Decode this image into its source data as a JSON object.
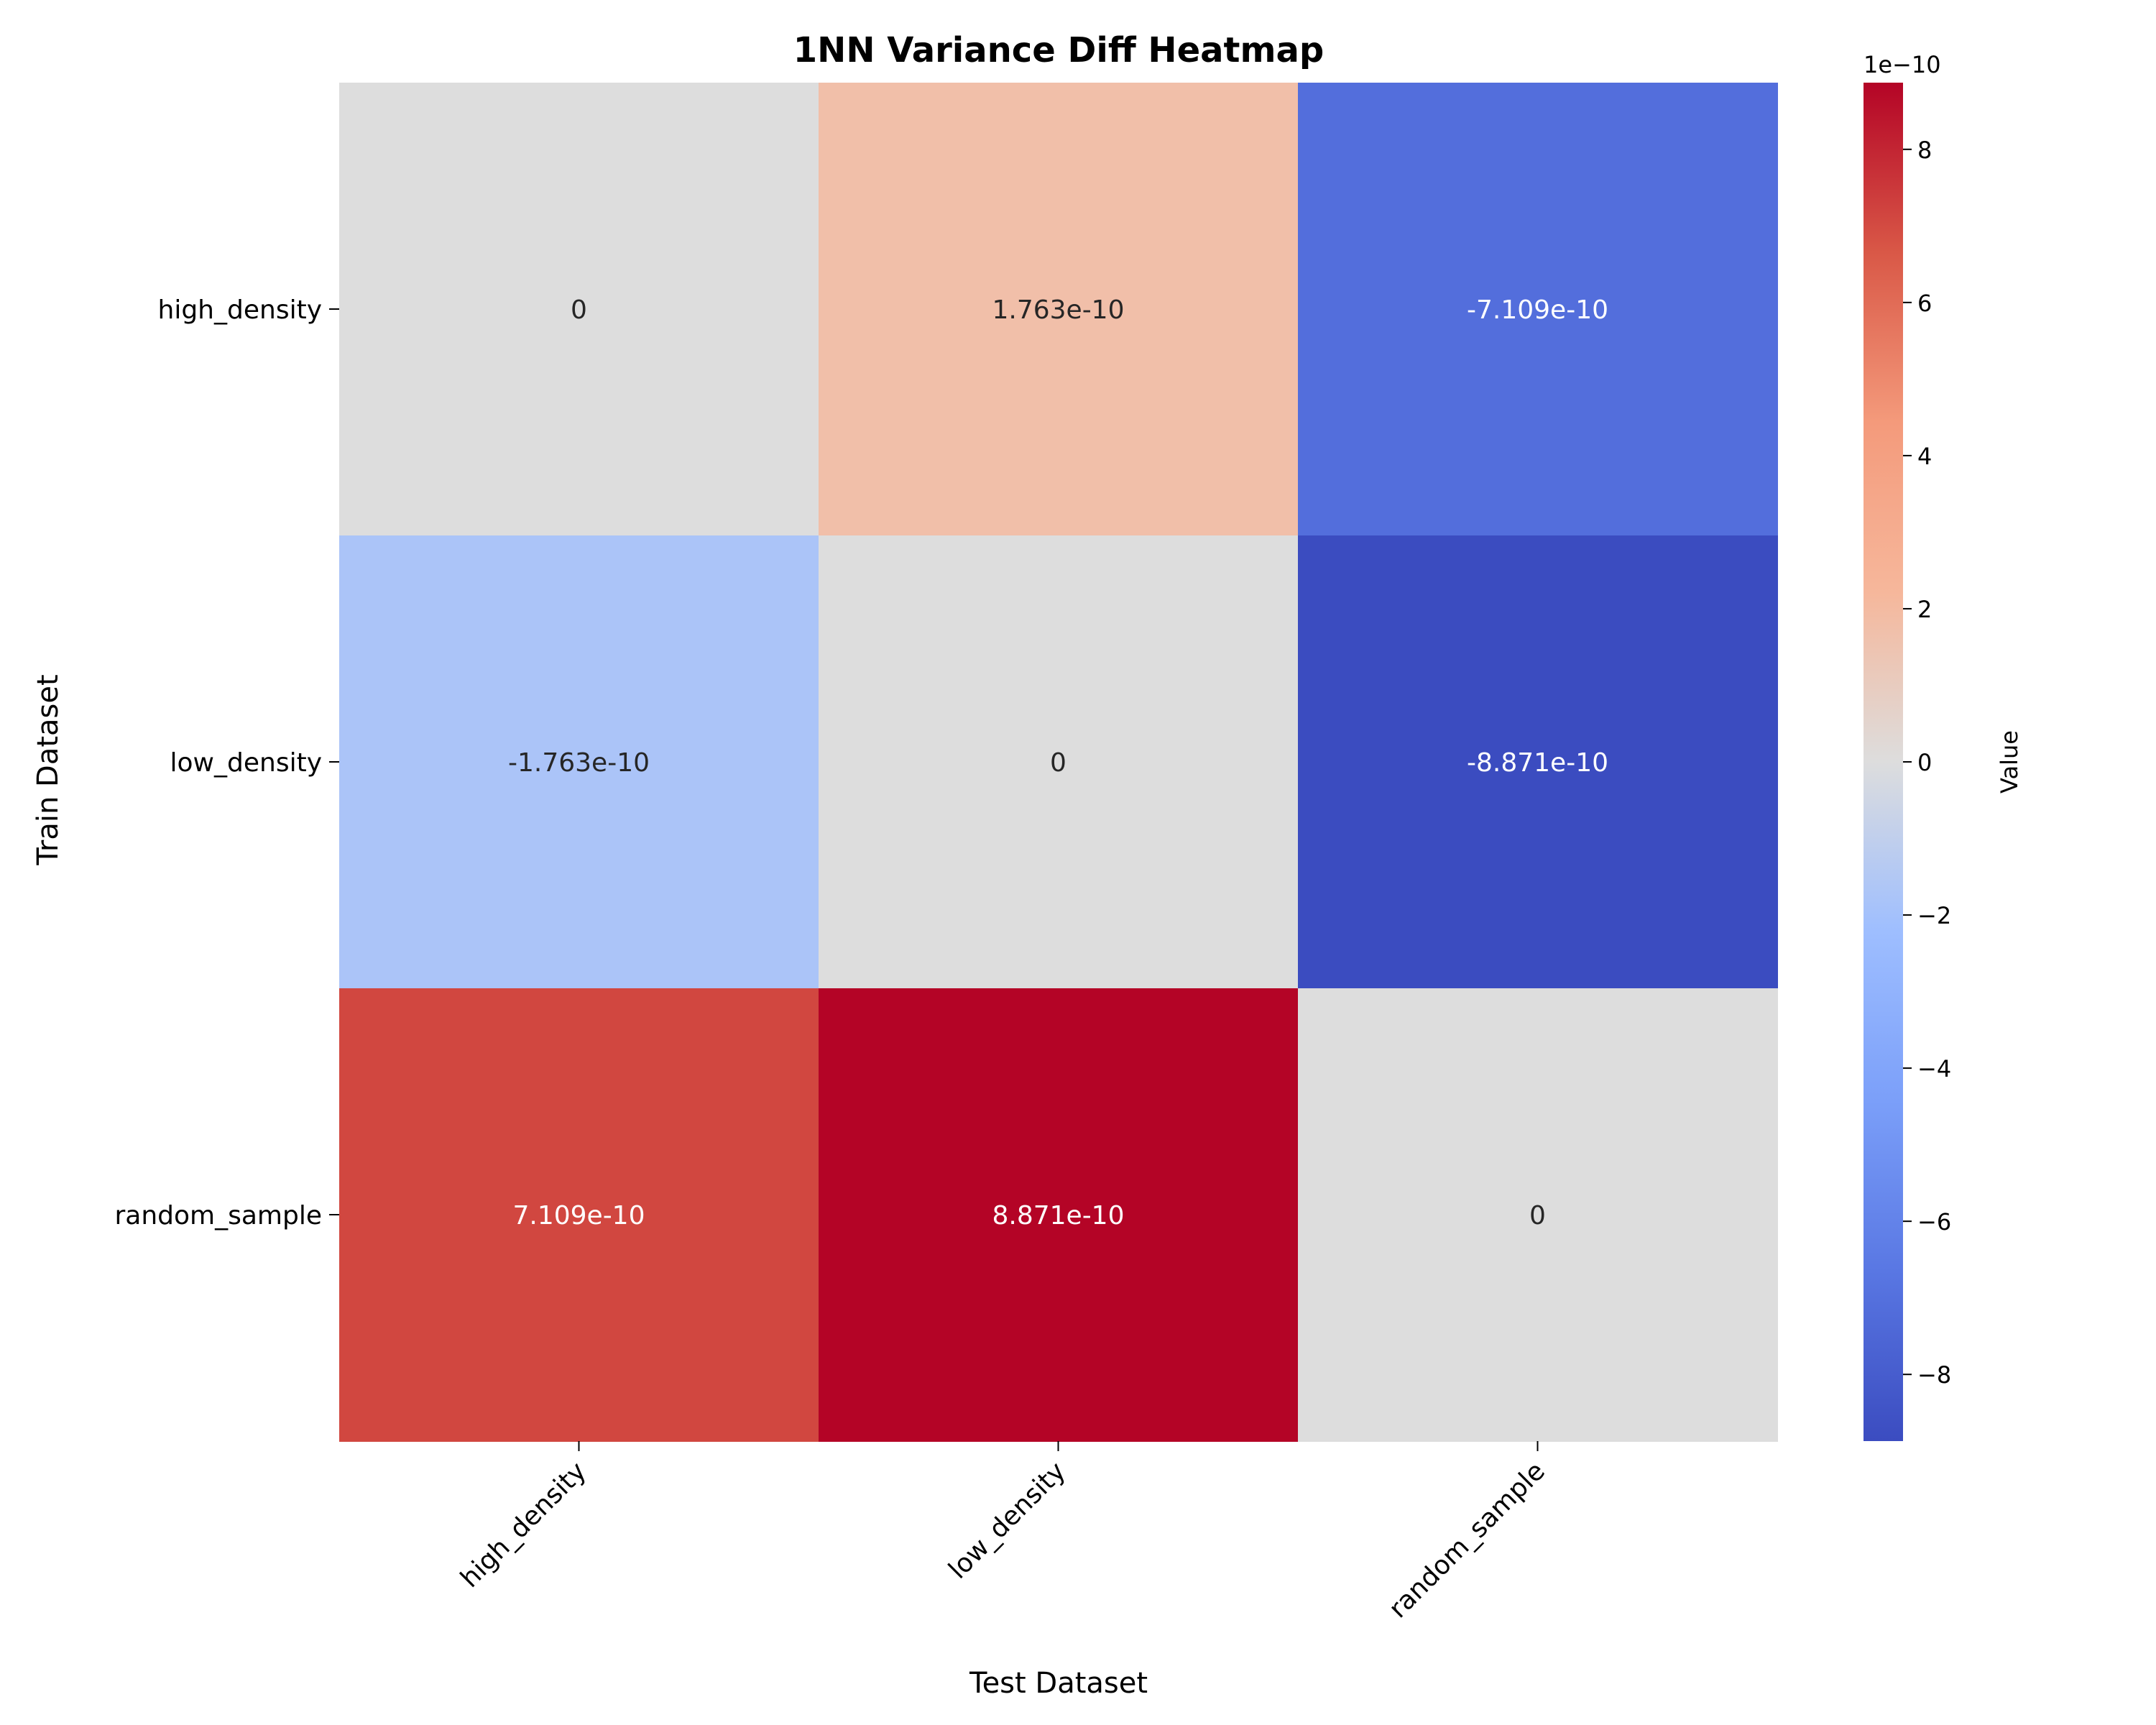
{
  "chart_data": {
    "type": "heatmap",
    "title": "1NN Variance Diff Heatmap",
    "xlabel": "Test Dataset",
    "ylabel": "Train Dataset",
    "x_categories": [
      "high_density",
      "low_density",
      "random_sample"
    ],
    "y_categories": [
      "high_density",
      "low_density",
      "random_sample"
    ],
    "values": [
      [
        0,
        1.763e-10,
        -7.109e-10
      ],
      [
        -1.763e-10,
        0,
        -8.871e-10
      ],
      [
        7.109e-10,
        8.871e-10,
        0
      ]
    ],
    "cell_labels": [
      [
        "0",
        "1.763e-10",
        "-7.109e-10"
      ],
      [
        "-1.763e-10",
        "0",
        "-8.871e-10"
      ],
      [
        "7.109e-10",
        "8.871e-10",
        "0"
      ]
    ],
    "colormap": "coolwarm",
    "colorbar": {
      "label": "Value",
      "offset_text": "1e−10",
      "range": [
        -8.871,
        8.871
      ],
      "ticks": [
        -8,
        -6,
        -4,
        -2,
        0,
        2,
        4,
        6,
        8
      ],
      "tick_labels": [
        "−8",
        "−6",
        "−4",
        "−2",
        "0",
        "2",
        "4",
        "6",
        "8"
      ]
    }
  }
}
